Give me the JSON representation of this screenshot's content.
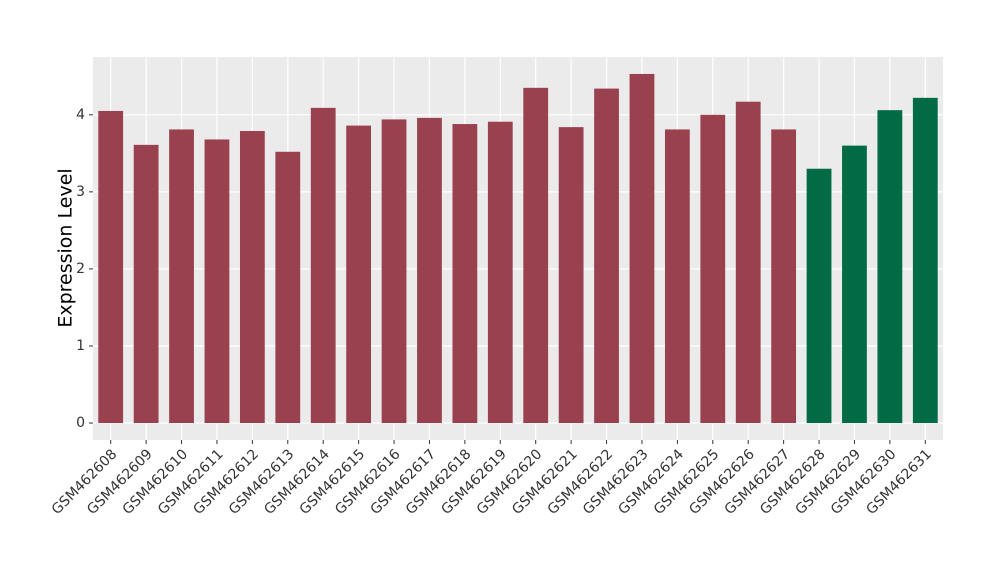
{
  "chart_data": {
    "type": "bar",
    "y_label": "Expression Level",
    "categories": [
      "GSM462608",
      "GSM462609",
      "GSM462610",
      "GSM462611",
      "GSM462612",
      "GSM462613",
      "GSM462614",
      "GSM462615",
      "GSM462616",
      "GSM462617",
      "GSM462618",
      "GSM462619",
      "GSM462620",
      "GSM462621",
      "GSM462622",
      "GSM462623",
      "GSM462624",
      "GSM462625",
      "GSM462626",
      "GSM462627",
      "GSM462628",
      "GSM462629",
      "GSM462630",
      "GSM462631"
    ],
    "values": [
      4.05,
      3.61,
      3.81,
      3.68,
      3.79,
      3.52,
      4.09,
      3.86,
      3.94,
      3.96,
      3.88,
      3.91,
      4.35,
      3.84,
      4.34,
      4.53,
      3.81,
      4.0,
      4.17,
      3.81,
      3.3,
      3.6,
      4.06,
      4.22
    ],
    "colors": [
      "#9a4150",
      "#9a4150",
      "#9a4150",
      "#9a4150",
      "#9a4150",
      "#9a4150",
      "#9a4150",
      "#9a4150",
      "#9a4150",
      "#9a4150",
      "#9a4150",
      "#9a4150",
      "#9a4150",
      "#9a4150",
      "#9a4150",
      "#9a4150",
      "#9a4150",
      "#9a4150",
      "#9a4150",
      "#9a4150",
      "#006b45",
      "#006b45",
      "#006b45",
      "#006b45"
    ],
    "ylim": [
      -0.22,
      4.75
    ],
    "yticks": [
      0,
      1,
      2,
      3,
      4
    ],
    "grid": true
  }
}
